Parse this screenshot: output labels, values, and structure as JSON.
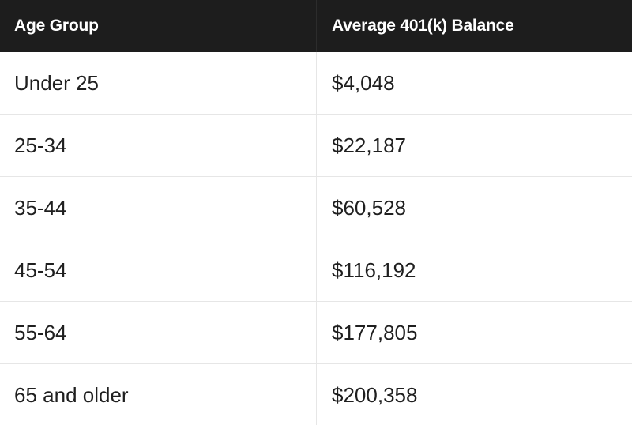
{
  "table": {
    "headers": [
      "Age Group",
      "Average 401(k) Balance"
    ],
    "rows": [
      [
        "Under 25",
        "$4,048"
      ],
      [
        "25-34",
        "$22,187"
      ],
      [
        "35-44",
        "$60,528"
      ],
      [
        "45-54",
        "$116,192"
      ],
      [
        "55-64",
        "$177,805"
      ],
      [
        "65 and older",
        "$200,358"
      ]
    ]
  },
  "colors": {
    "header_background": "#1d1d1d",
    "header_text": "#ffffff",
    "body_background": "#ffffff",
    "body_text": "#1f1f1f",
    "grid_line": "#e6e6e6"
  }
}
